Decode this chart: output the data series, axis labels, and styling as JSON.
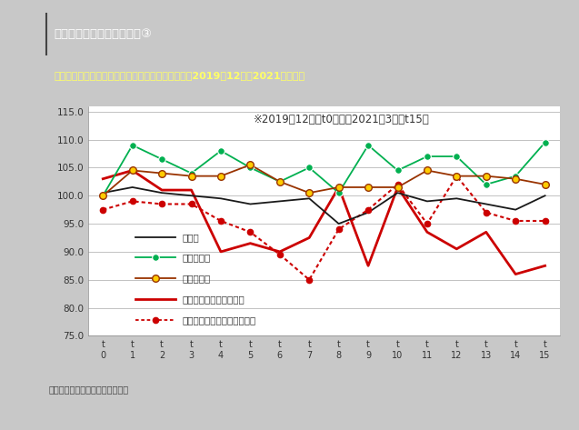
{
  "title_main": "２．３　マクロ統計の結果③",
  "title_sub": "図表３　産業別雇用者数（原数値）の前年同月比（2019年12月～2021年３月）",
  "title_sub_small": "（2019年12月～2021年３月）",
  "annotation": "※2019年12月＝t0期　　2021年3月＝t15期",
  "xlabel_ticks": [
    "t\n0",
    "t\n1",
    "t\n2",
    "t\n3",
    "t\n4",
    "t\n5",
    "t\n6",
    "t\n7",
    "t\n8",
    "t\n9",
    "t\n10",
    "t\n11",
    "t\n12",
    "t\n13",
    "t\n14",
    "t\n15"
  ],
  "ylim": [
    75.0,
    116.0
  ],
  "yticks": [
    75.0,
    80.0,
    85.0,
    90.0,
    95.0,
    100.0,
    105.0,
    110.0,
    115.0
  ],
  "manufacturing": [
    100.5,
    101.5,
    100.5,
    100.0,
    99.5,
    98.5,
    99.0,
    99.5,
    95.0,
    97.0,
    100.5,
    99.0,
    99.5,
    98.5,
    97.5,
    100.0
  ],
  "it": [
    100.0,
    109.0,
    106.5,
    104.0,
    108.0,
    105.0,
    102.5,
    105.0,
    100.5,
    109.0,
    104.5,
    107.0,
    107.0,
    102.0,
    103.5,
    109.5
  ],
  "medical": [
    100.0,
    104.5,
    104.0,
    103.5,
    103.5,
    105.5,
    102.5,
    100.5,
    101.5,
    101.5,
    101.5,
    104.5,
    103.5,
    103.5,
    103.0,
    102.0
  ],
  "accommodation": [
    103.0,
    104.5,
    101.0,
    101.0,
    90.0,
    91.5,
    90.0,
    92.5,
    101.5,
    87.5,
    101.5,
    93.5,
    90.5,
    93.5,
    86.0,
    87.5
  ],
  "lifestyle": [
    97.5,
    99.0,
    98.5,
    98.5,
    95.5,
    93.5,
    89.5,
    85.0,
    94.0,
    97.5,
    102.0,
    95.0,
    103.5,
    97.0,
    95.5,
    95.5
  ],
  "footer": "出典：『労働力調査』より作成。",
  "bg_outer": "#c8c8c8",
  "bg_header": "#1e2060",
  "bg_subheader": "#1e3a7e",
  "bg_plot_area": "#f0f0f0",
  "bg_chart": "#ffffff",
  "left_bar_color": "#c8c8c8",
  "right_bar_color": "#c8a000"
}
